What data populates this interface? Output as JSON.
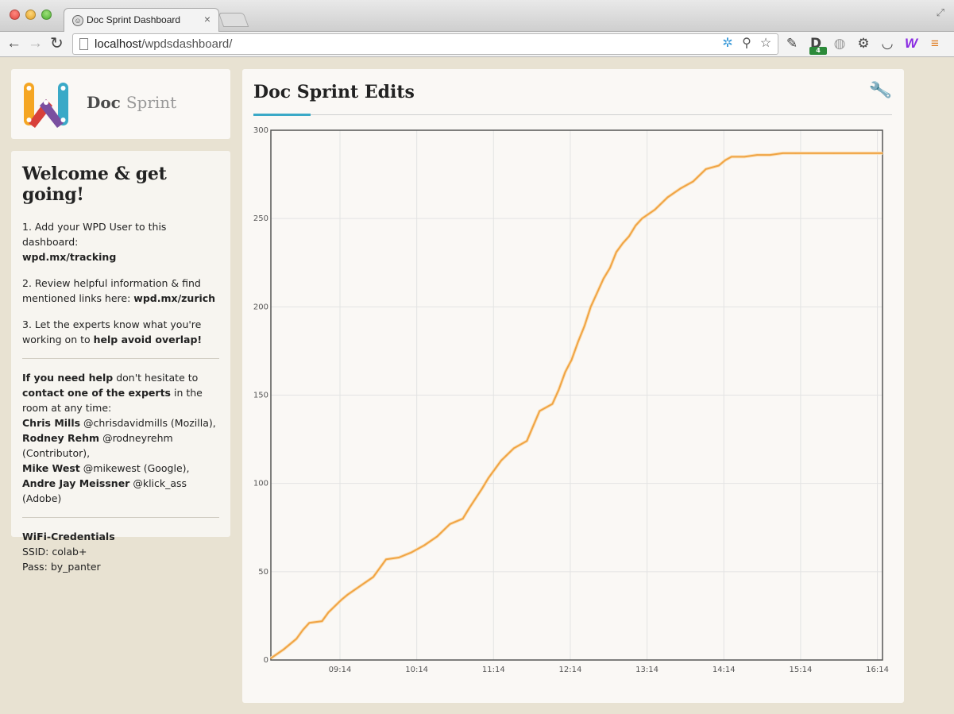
{
  "browser": {
    "tab_title": "Doc Sprint Dashboard",
    "tab_close": "×",
    "url_host": "localhost",
    "url_path": "/wpdsdashboard/",
    "ext_badge": "4"
  },
  "logo": {
    "word1": "Doc",
    "word2": "Sprint"
  },
  "welcome": {
    "title": "Welcome & get going!",
    "step1_text": "1. Add your WPD User to this dashboard:",
    "step1_link": "wpd.mx/tracking",
    "step2_text": "2. Review helpful information & find mentioned links here:",
    "step2_link": "wpd.mx/zurich",
    "step3_text": "3. Let the experts know what you're working on to",
    "step3_bold": "help avoid overlap!",
    "help_bold1": "If you need help",
    "help_text1": "don't hesitate to",
    "help_bold2": "contact one of the experts",
    "help_text2": "in the room at any time:",
    "experts": [
      {
        "name": "Chris Mills",
        "detail": "@chrisdavidmills (Mozilla),"
      },
      {
        "name": "Rodney Rehm",
        "detail": "@rodneyrehm (Contributor),"
      },
      {
        "name": "Mike West",
        "detail": "@mikewest (Google),"
      },
      {
        "name": "Andre Jay Meissner",
        "detail": "@klick_ass (Adobe)"
      }
    ],
    "wifi_title": "WiFi-Credentials",
    "wifi_ssid": "SSID: colab+",
    "wifi_pass": "Pass: by_panter"
  },
  "colors": {
    "accent": "#3aa9c7",
    "line": "#f0a444",
    "bg": "#e8e2d2"
  },
  "chart_data": {
    "type": "line",
    "title": "Doc Sprint Edits",
    "xlabel": "",
    "ylabel": "",
    "x_ticks": [
      "09:14",
      "10:14",
      "11:14",
      "12:14",
      "13:14",
      "14:14",
      "15:14",
      "16:14"
    ],
    "x_tick_minutes": [
      554,
      614,
      674,
      734,
      794,
      854,
      914,
      974
    ],
    "x_range_minutes": [
      500,
      978
    ],
    "y_ticks": [
      0,
      50,
      100,
      150,
      200,
      250,
      300
    ],
    "ylim": [
      0,
      300
    ],
    "grid": true,
    "series": [
      {
        "name": "Edits",
        "x_minutes": [
          500,
          510,
          520,
          525,
          530,
          540,
          545,
          555,
          560,
          570,
          580,
          590,
          600,
          610,
          620,
          630,
          640,
          650,
          655,
          665,
          670,
          675,
          680,
          690,
          700,
          710,
          720,
          725,
          730,
          735,
          740,
          745,
          750,
          755,
          760,
          765,
          770,
          775,
          780,
          785,
          790,
          800,
          810,
          820,
          830,
          840,
          845,
          850,
          855,
          860,
          870,
          880,
          890,
          900,
          910,
          920,
          940,
          960,
          978
        ],
        "values": [
          1,
          6,
          12,
          17,
          21,
          22,
          27,
          34,
          37,
          42,
          47,
          57,
          58,
          61,
          65,
          70,
          77,
          80,
          86,
          97,
          103,
          108,
          113,
          120,
          124,
          141,
          145,
          153,
          163,
          170,
          180,
          189,
          200,
          208,
          216,
          222,
          231,
          236,
          240,
          246,
          250,
          255,
          262,
          267,
          271,
          278,
          279,
          280,
          283,
          285,
          285,
          286,
          286,
          287,
          287,
          287,
          287,
          287,
          287
        ]
      }
    ]
  }
}
